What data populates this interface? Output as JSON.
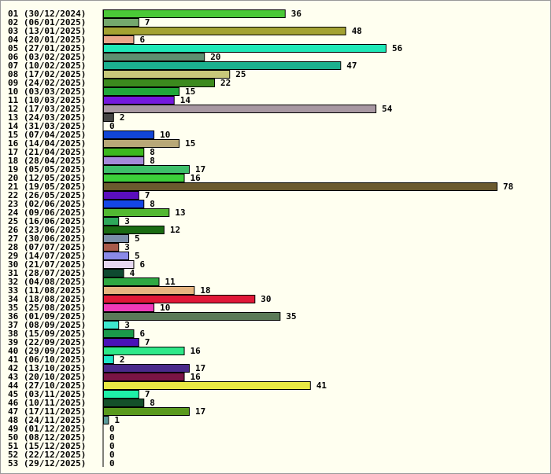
{
  "chart_data": {
    "type": "bar",
    "orientation": "horizontal",
    "title": "",
    "xlabel": "",
    "ylabel": "",
    "grid": false,
    "xlim": [
      0,
      78
    ],
    "categories": [
      "01 (30/12/2024)",
      "02 (06/01/2025)",
      "03 (13/01/2025)",
      "04 (20/01/2025)",
      "05 (27/01/2025)",
      "06 (03/02/2025)",
      "07 (10/02/2025)",
      "08 (17/02/2025)",
      "09 (24/02/2025)",
      "10 (03/03/2025)",
      "11 (10/03/2025)",
      "12 (17/03/2025)",
      "13 (24/03/2025)",
      "14 (31/03/2025)",
      "15 (07/04/2025)",
      "16 (14/04/2025)",
      "17 (21/04/2025)",
      "18 (28/04/2025)",
      "19 (05/05/2025)",
      "20 (12/05/2025)",
      "21 (19/05/2025)",
      "22 (26/05/2025)",
      "23 (02/06/2025)",
      "24 (09/06/2025)",
      "25 (16/06/2025)",
      "26 (23/06/2025)",
      "27 (30/06/2025)",
      "28 (07/07/2025)",
      "29 (14/07/2025)",
      "30 (21/07/2025)",
      "31 (28/07/2025)",
      "32 (04/08/2025)",
      "33 (11/08/2025)",
      "34 (18/08/2025)",
      "35 (25/08/2025)",
      "36 (01/09/2025)",
      "37 (08/09/2025)",
      "38 (15/09/2025)",
      "39 (22/09/2025)",
      "40 (29/09/2025)",
      "41 (06/10/2025)",
      "42 (13/10/2025)",
      "43 (20/10/2025)",
      "44 (27/10/2025)",
      "45 (03/11/2025)",
      "46 (10/11/2025)",
      "47 (17/11/2025)",
      "48 (24/11/2025)",
      "49 (01/12/2025)",
      "50 (08/12/2025)",
      "51 (15/12/2025)",
      "52 (22/12/2025)",
      "53 (29/12/2025)"
    ],
    "values": [
      36,
      7,
      48,
      6,
      56,
      20,
      47,
      25,
      22,
      15,
      14,
      54,
      2,
      0,
      10,
      15,
      8,
      8,
      17,
      16,
      78,
      7,
      8,
      13,
      3,
      12,
      5,
      3,
      5,
      6,
      4,
      11,
      18,
      30,
      10,
      35,
      3,
      6,
      7,
      16,
      2,
      17,
      16,
      41,
      7,
      8,
      17,
      1,
      0,
      0,
      0,
      0,
      0
    ],
    "colors": [
      "#4ac837",
      "#74a86d",
      "#a3a232",
      "#e8a68a",
      "#1ee8b7",
      "#5e8f6f",
      "#1bb08f",
      "#c8c87a",
      "#3c8a1e",
      "#21a83a",
      "#7418de",
      "#a898a2",
      "#444444",
      "#ffffff",
      "#1145d6",
      "#b8a878",
      "#3cb81e",
      "#a58ada",
      "#3ebf6a",
      "#3cd03a",
      "#6b5a2e",
      "#5a0ebd",
      "#1446e6",
      "#52b832",
      "#2ea85a",
      "#1a6b12",
      "#7a8ea8",
      "#a85a4a",
      "#8a8ae8",
      "#e6d8f0",
      "#0e4a30",
      "#2ea842",
      "#e6b480",
      "#e01838",
      "#f03ab8",
      "#5a7a58",
      "#3ee8d0",
      "#1a9a4a",
      "#4a12b8",
      "#2ee888",
      "#1ee8c8",
      "#4a2a8a",
      "#7a1444",
      "#e8e844",
      "#1ef0a8",
      "#14502a",
      "#5a9a1e",
      "#5a9a9a",
      "#cccccc",
      "#cccccc",
      "#cccccc",
      "#cccccc",
      "#cccccc"
    ]
  }
}
